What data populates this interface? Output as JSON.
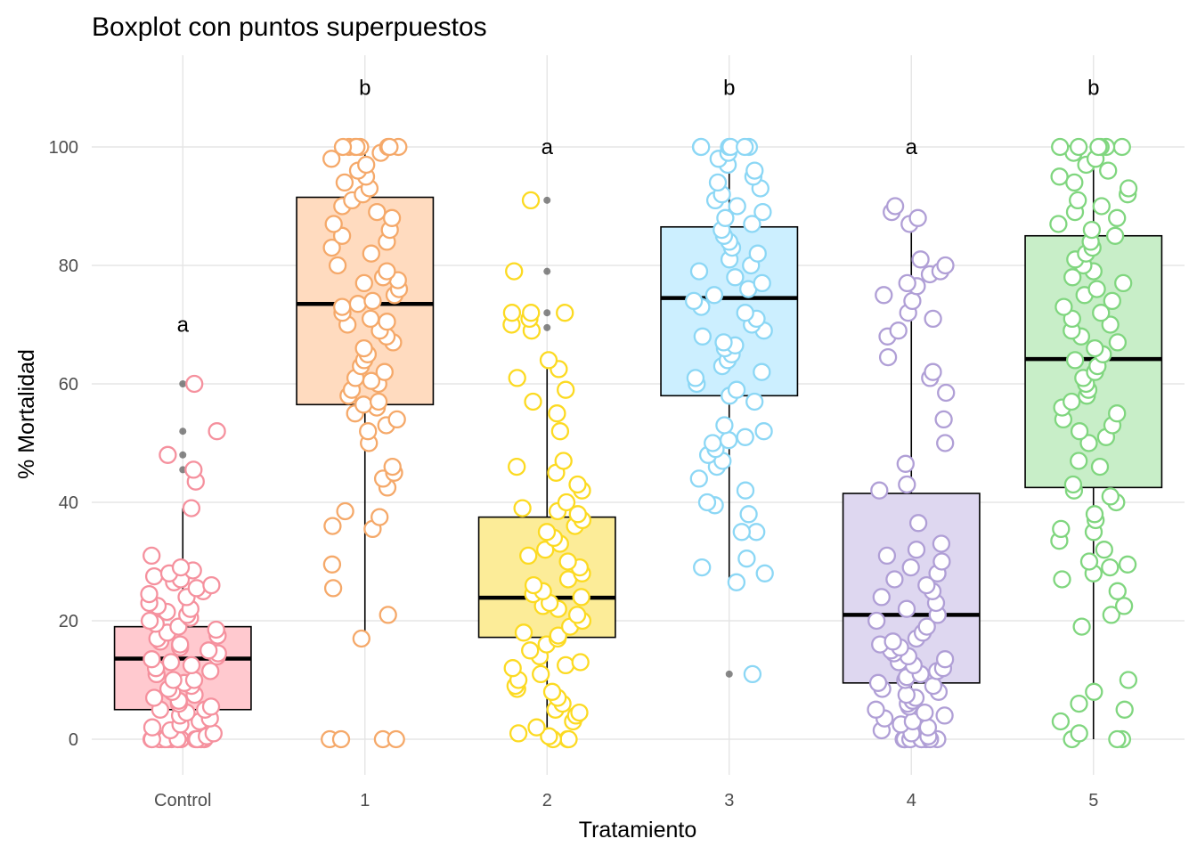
{
  "chart_data": {
    "type": "boxplot",
    "title": "Boxplot con puntos superpuestos",
    "xlabel": "Tratamiento",
    "ylabel": "% Mortalidad",
    "ylim": [
      -6,
      111
    ],
    "yticks": [
      0,
      20,
      40,
      60,
      80,
      100
    ],
    "grid": true,
    "legend": "none",
    "categories": [
      "Control",
      "1",
      "2",
      "3",
      "4",
      "5"
    ],
    "groups": [
      {
        "label": "Control",
        "letter": "a",
        "letter_y": 70,
        "fill": "#FFC9CF",
        "point_color": "#F5919E",
        "stats": {
          "whisker_low": 0,
          "q1": 5,
          "median": 13.6,
          "q3": 19,
          "whisker_high": 39
        },
        "outliers": [
          60,
          52,
          48,
          45.5
        ],
        "points": [
          0,
          0,
          0,
          0,
          0,
          0,
          0,
          0,
          0,
          0,
          0,
          0,
          0,
          0,
          0,
          0,
          0,
          0,
          0.5,
          1,
          1.5,
          2,
          2.5,
          3,
          3.5,
          4,
          4.5,
          5,
          5,
          5.5,
          6,
          6.5,
          7,
          7.5,
          8,
          8.5,
          9,
          9.5,
          10,
          10,
          11,
          11.5,
          12,
          12.5,
          13,
          13.5,
          14,
          14.5,
          15,
          15.5,
          16,
          16.5,
          17,
          17.5,
          18,
          18.5,
          19,
          19.5,
          20,
          20.5,
          21,
          21.5,
          22,
          22.5,
          23,
          24,
          24.5,
          25,
          25.5,
          26,
          26.5,
          27,
          27.5,
          28,
          28.5,
          29,
          31,
          39,
          43.5,
          45.5,
          48,
          52,
          60
        ]
      },
      {
        "label": "1",
        "letter": "b",
        "letter_y": 110,
        "fill": "#FFDBBF",
        "point_color": "#F5A96A",
        "stats": {
          "whisker_low": 17,
          "q1": 56.5,
          "median": 73.5,
          "q3": 91.5,
          "whisker_high": 100
        },
        "outliers": [],
        "points": [
          0,
          0,
          0,
          0,
          17,
          21,
          25.5,
          29.5,
          35.5,
          36,
          37.5,
          38.5,
          42.5,
          44,
          45,
          46,
          50,
          52,
          53,
          54,
          55,
          56,
          56.5,
          57,
          58,
          59,
          60,
          60.5,
          61,
          62,
          63,
          64,
          65,
          66,
          67,
          68,
          69,
          70,
          70.5,
          71,
          72,
          73,
          73.5,
          74,
          75,
          76,
          77,
          77.5,
          78,
          79,
          80,
          82,
          83,
          84,
          85,
          86,
          87,
          88,
          89,
          90,
          91,
          92,
          93,
          94,
          95,
          96,
          97,
          98,
          99,
          100,
          100,
          100,
          100,
          100,
          100,
          100,
          100
        ]
      },
      {
        "label": "2",
        "letter": "a",
        "letter_y": 100,
        "fill": "#FCEC98",
        "point_color": "#FCDA22",
        "stats": {
          "whisker_low": 0,
          "q1": 17.2,
          "median": 23.9,
          "q3": 37.5,
          "whisker_high": 64
        },
        "outliers": [
          91,
          79,
          72,
          69.5
        ],
        "points": [
          0,
          0,
          0,
          0.5,
          1,
          2,
          3,
          4,
          4.5,
          5,
          6,
          7,
          8,
          8.5,
          9,
          10,
          11,
          12,
          12.5,
          13,
          14,
          15,
          16,
          17,
          17.5,
          18,
          19,
          20,
          21,
          22,
          22.5,
          23,
          24,
          24.5,
          25,
          26,
          27,
          28,
          29,
          30,
          31,
          32,
          33,
          34,
          35,
          36,
          37,
          38,
          38.5,
          39,
          40,
          42,
          43,
          45,
          46,
          47,
          52,
          55,
          57,
          59,
          61,
          62.5,
          64,
          69,
          70,
          71,
          72,
          72,
          72,
          79,
          91
        ]
      },
      {
        "label": "3",
        "letter": "b",
        "letter_y": 110,
        "fill": "#CCEFFF",
        "point_color": "#8CD7F5",
        "stats": {
          "whisker_low": 26,
          "q1": 58,
          "median": 74.5,
          "q3": 86.5,
          "whisker_high": 100
        },
        "outliers": [
          11
        ],
        "points": [
          11,
          26.5,
          28,
          29,
          30.5,
          35,
          35,
          38,
          39.5,
          40,
          42,
          44,
          46,
          47,
          48,
          49,
          50,
          50.5,
          51,
          52,
          53,
          57,
          58,
          59,
          60,
          61,
          62,
          63,
          64,
          65,
          66,
          66.5,
          67,
          68,
          69,
          70,
          71,
          72,
          73,
          74,
          75,
          76,
          77,
          78,
          79,
          80,
          81,
          82,
          83,
          84,
          85,
          86,
          87,
          88,
          89,
          90,
          91,
          92,
          93,
          94,
          95,
          96,
          97,
          98,
          99,
          100,
          100,
          100,
          100,
          100,
          100
        ]
      },
      {
        "label": "4",
        "letter": "a",
        "letter_y": 100,
        "fill": "#DED7F0",
        "point_color": "#B09FD6",
        "stats": {
          "whisker_low": 0,
          "q1": 9.5,
          "median": 21,
          "q3": 41.5,
          "whisker_high": 88
        },
        "outliers": [],
        "points": [
          0,
          0,
          0,
          0,
          0,
          0,
          0,
          0,
          0,
          0,
          0.5,
          1,
          1.5,
          2,
          2.5,
          3,
          3.5,
          4,
          4.5,
          5,
          5.5,
          6,
          6.5,
          7,
          7.5,
          8,
          8.5,
          9,
          9.5,
          10,
          10.5,
          11,
          11.5,
          12,
          12.5,
          13,
          13.5,
          14,
          14.5,
          15,
          15.5,
          16,
          16.5,
          17,
          18,
          19,
          20,
          21,
          22,
          23,
          24,
          25,
          26,
          27,
          28,
          29,
          30,
          31,
          32,
          33,
          36.5,
          42,
          43,
          46.5,
          50,
          54,
          58.5,
          61,
          62,
          64.5,
          68,
          69,
          71,
          72,
          74,
          75,
          76.5,
          77,
          78.5,
          79,
          80,
          81,
          87,
          88,
          89,
          90
        ]
      },
      {
        "label": "5",
        "letter": "b",
        "letter_y": 110,
        "fill": "#C8EEC8",
        "point_color": "#80D67F",
        "stats": {
          "whisker_low": 0,
          "q1": 42.5,
          "median": 64.2,
          "q3": 85,
          "whisker_high": 100
        },
        "outliers": [],
        "points": [
          0,
          0,
          0,
          1,
          3,
          5,
          6,
          8,
          10,
          19,
          21,
          22.5,
          25,
          27,
          28,
          29,
          29.5,
          30,
          32,
          33.5,
          35,
          35.5,
          37,
          38,
          40,
          41,
          42,
          43,
          46,
          47,
          50,
          51,
          52,
          53,
          54,
          55,
          56,
          57,
          58,
          59,
          60,
          61,
          62,
          63,
          64,
          65,
          66,
          67,
          68,
          69,
          70,
          71,
          72,
          73,
          74,
          75,
          76,
          77,
          78,
          79,
          80,
          81,
          82,
          83,
          84,
          85,
          86,
          87,
          88,
          89,
          90,
          91,
          92,
          93,
          94,
          95,
          96,
          97,
          98,
          99,
          100,
          100,
          100,
          100,
          100,
          100
        ]
      }
    ]
  }
}
